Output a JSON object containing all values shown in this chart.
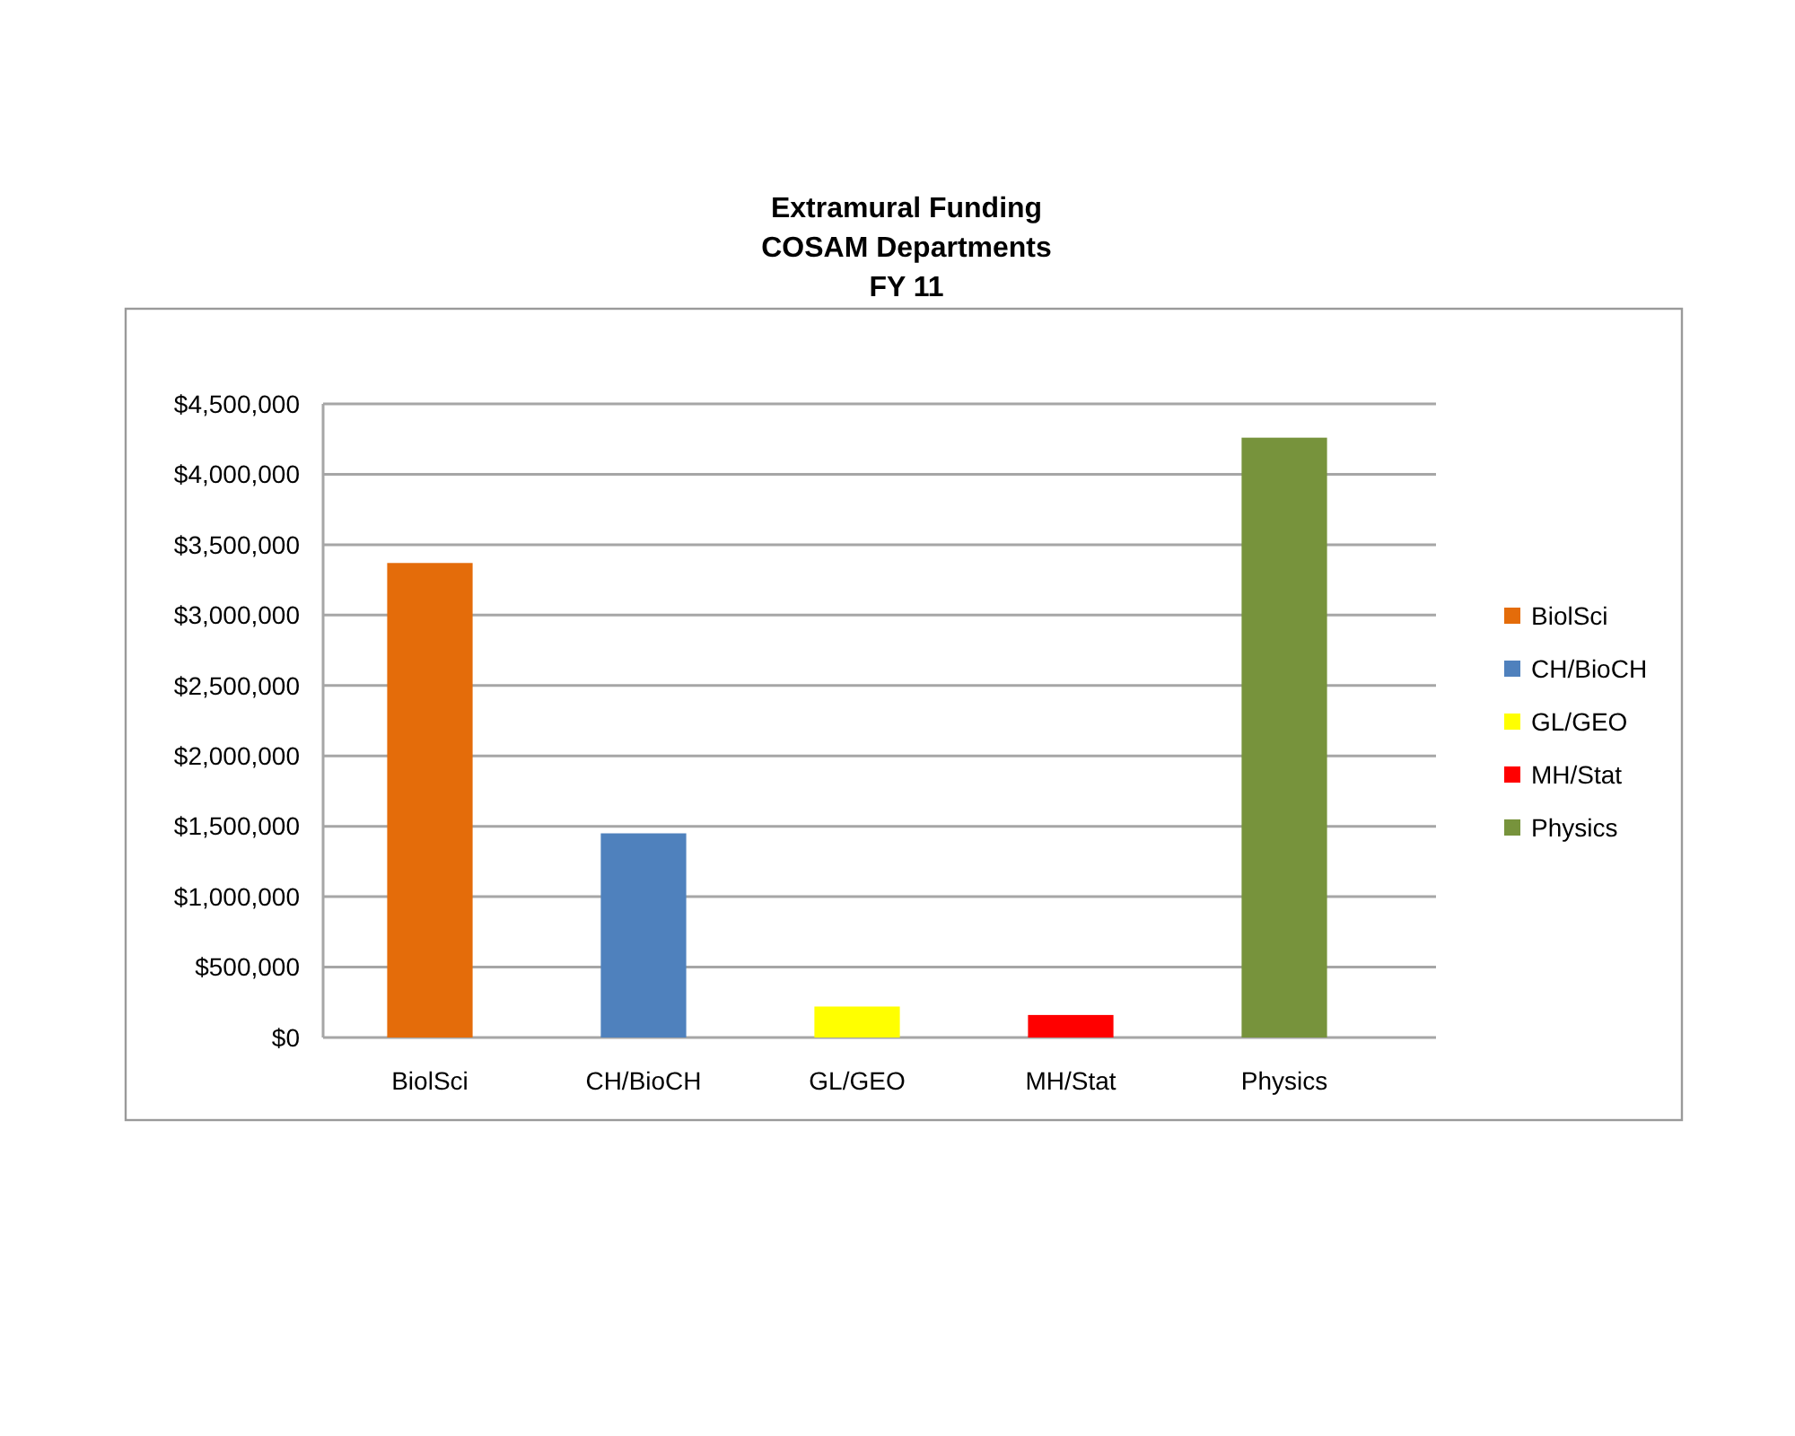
{
  "chart_data": {
    "type": "bar",
    "title": "Extramural Funding\nCOSAM Departments\nFY 11",
    "categories": [
      "BiolSci",
      "CH/BioCH",
      "GL/GEO",
      "MH/Stat",
      "Physics"
    ],
    "series": [
      {
        "name": "BiolSci",
        "color": "#e46c0a",
        "values": [
          3370000,
          null,
          null,
          null,
          null
        ]
      },
      {
        "name": "CH/BioCH",
        "color": "#4f81bd",
        "values": [
          null,
          1450000,
          null,
          null,
          null
        ]
      },
      {
        "name": "GL/GEO",
        "color": "#ffff00",
        "values": [
          null,
          null,
          220000,
          null,
          null
        ]
      },
      {
        "name": "MH/Stat",
        "color": "#ff0000",
        "values": [
          null,
          null,
          null,
          160000,
          null
        ]
      },
      {
        "name": "Physics",
        "color": "#77933c",
        "values": [
          null,
          null,
          null,
          null,
          4260000
        ]
      }
    ],
    "stacked": true,
    "ylim": [
      0,
      4500000
    ],
    "yticks": [
      {
        "value": 0,
        "label": "$0"
      },
      {
        "value": 500000,
        "label": "$500,000"
      },
      {
        "value": 1000000,
        "label": "$1,000,000"
      },
      {
        "value": 1500000,
        "label": "$1,500,000"
      },
      {
        "value": 2000000,
        "label": "$2,000,000"
      },
      {
        "value": 2500000,
        "label": "$2,500,000"
      },
      {
        "value": 3000000,
        "label": "$3,000,000"
      },
      {
        "value": 3500000,
        "label": "$3,500,000"
      },
      {
        "value": 4000000,
        "label": "$4,000,000"
      },
      {
        "value": 4500000,
        "label": "$4,500,000"
      }
    ],
    "grid": "y",
    "legend": "right"
  }
}
